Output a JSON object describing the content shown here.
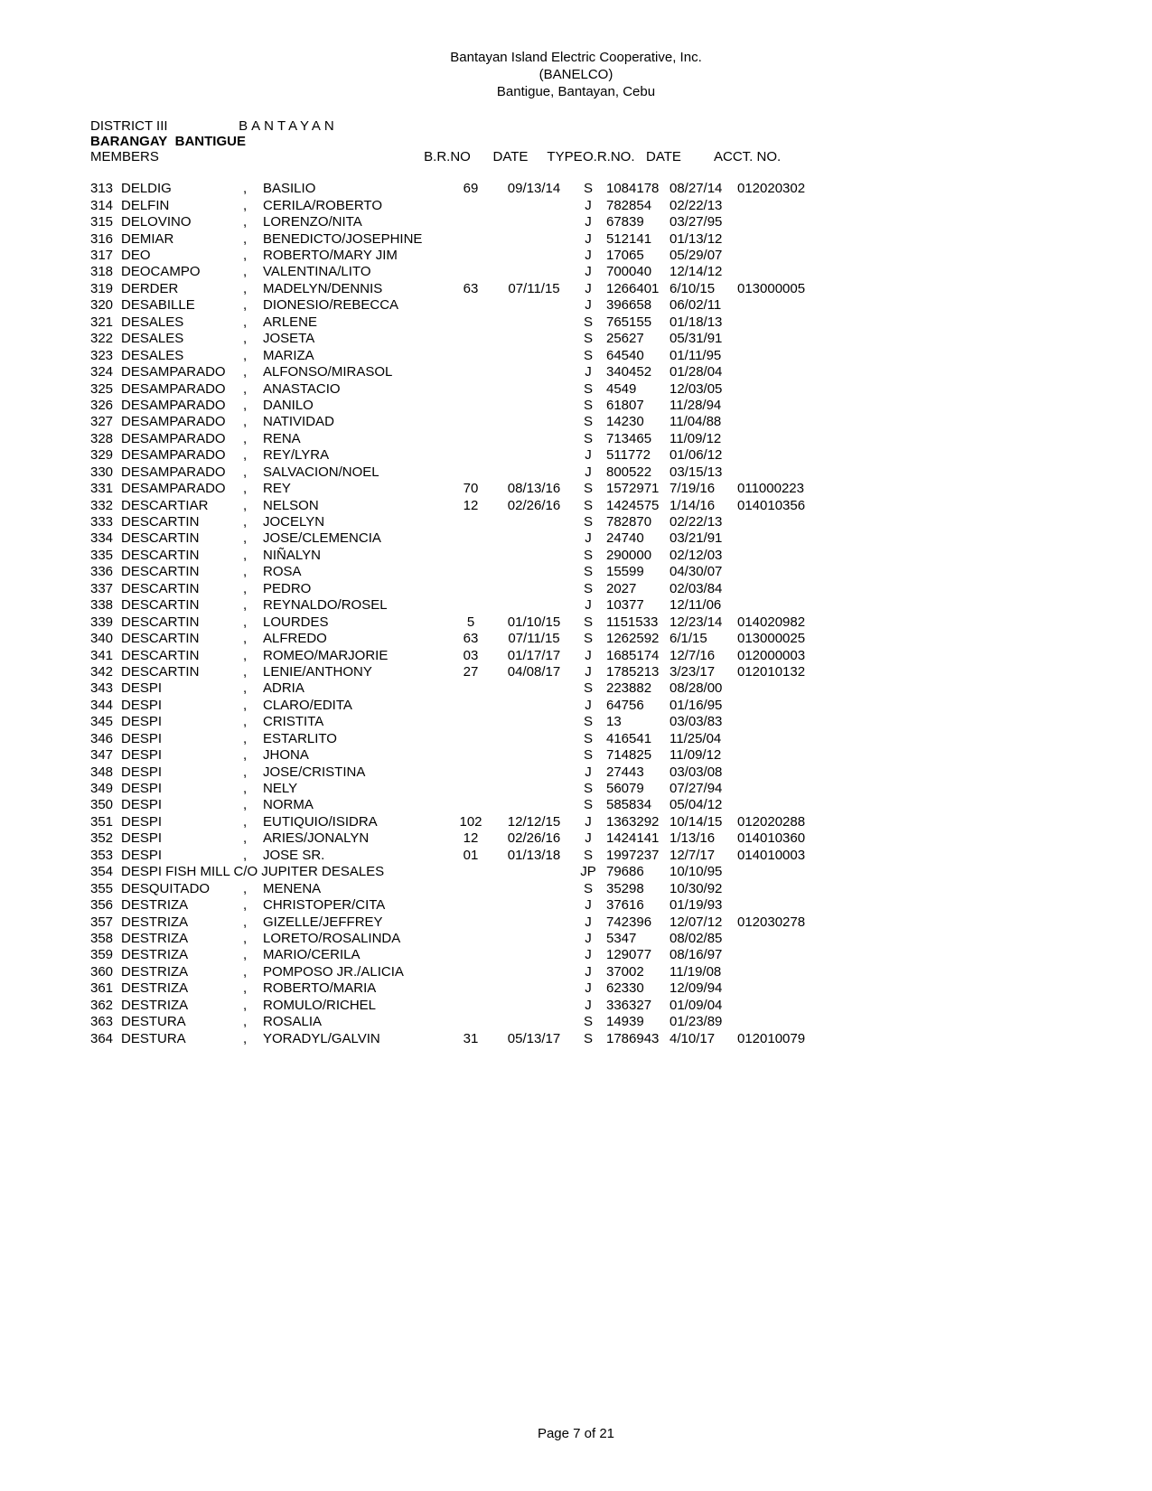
{
  "header": {
    "org": "Bantayan Island Electric Cooperative, Inc.",
    "abbr": "(BANELCO)",
    "addr": "Bantigue, Bantayan, Cebu"
  },
  "meta": {
    "district_label": "DISTRICT III",
    "district_name": "BANTAYAN",
    "barangay_label": "BARANGAY",
    "barangay_name": "BANTIGUE",
    "members_label": "MEMBERS"
  },
  "columns": {
    "brno": "B.R.NO",
    "date": "DATE",
    "type": "TYPE",
    "orno": "O.R.NO.",
    "odate": "DATE",
    "acct": "ACCT. NO."
  },
  "rows": [
    {
      "n": "313",
      "last": "DELDIG",
      "first": "BASILIO",
      "brno": "69",
      "bdate": "09/13/14",
      "type": "S",
      "orno": "1084178",
      "odate": "08/27/14",
      "acct": "012020302"
    },
    {
      "n": "314",
      "last": "DELFIN",
      "first": "CERILA/ROBERTO",
      "brno": "",
      "bdate": "",
      "type": "J",
      "orno": "782854",
      "odate": "02/22/13",
      "acct": ""
    },
    {
      "n": "315",
      "last": "DELOVINO",
      "first": "LORENZO/NITA",
      "brno": "",
      "bdate": "",
      "type": "J",
      "orno": "67839",
      "odate": "03/27/95",
      "acct": ""
    },
    {
      "n": "316",
      "last": "DEMIAR",
      "first": "BENEDICTO/JOSEPHINE",
      "brno": "",
      "bdate": "",
      "type": "J",
      "orno": "512141",
      "odate": "01/13/12",
      "acct": ""
    },
    {
      "n": "317",
      "last": "DEO",
      "first": "ROBERTO/MARY JIM",
      "brno": "",
      "bdate": "",
      "type": "J",
      "orno": "17065",
      "odate": "05/29/07",
      "acct": ""
    },
    {
      "n": "318",
      "last": "DEOCAMPO",
      "first": "VALENTINA/LITO",
      "brno": "",
      "bdate": "",
      "type": "J",
      "orno": "700040",
      "odate": "12/14/12",
      "acct": ""
    },
    {
      "n": "319",
      "last": "DERDER",
      "first": "MADELYN/DENNIS",
      "brno": "63",
      "bdate": "07/11/15",
      "type": "J",
      "orno": "1266401",
      "odate": "6/10/15",
      "acct": "013000005"
    },
    {
      "n": "320",
      "last": "DESABILLE",
      "first": "DIONESIO/REBECCA",
      "brno": "",
      "bdate": "",
      "type": "J",
      "orno": "396658",
      "odate": "06/02/11",
      "acct": ""
    },
    {
      "n": "321",
      "last": "DESALES",
      "first": "ARLENE",
      "brno": "",
      "bdate": "",
      "type": "S",
      "orno": "765155",
      "odate": "01/18/13",
      "acct": ""
    },
    {
      "n": "322",
      "last": "DESALES",
      "first": "JOSETA",
      "brno": "",
      "bdate": "",
      "type": "S",
      "orno": "25627",
      "odate": "05/31/91",
      "acct": ""
    },
    {
      "n": "323",
      "last": "DESALES",
      "first": "MARIZA",
      "brno": "",
      "bdate": "",
      "type": "S",
      "orno": "64540",
      "odate": "01/11/95",
      "acct": ""
    },
    {
      "n": "324",
      "last": "DESAMPARADO",
      "first": "ALFONSO/MIRASOL",
      "brno": "",
      "bdate": "",
      "type": "J",
      "orno": "340452",
      "odate": "01/28/04",
      "acct": ""
    },
    {
      "n": "325",
      "last": "DESAMPARADO",
      "first": "ANASTACIO",
      "brno": "",
      "bdate": "",
      "type": "S",
      "orno": "4549",
      "odate": "12/03/05",
      "acct": ""
    },
    {
      "n": "326",
      "last": "DESAMPARADO",
      "first": "DANILO",
      "brno": "",
      "bdate": "",
      "type": "S",
      "orno": "61807",
      "odate": "11/28/94",
      "acct": ""
    },
    {
      "n": "327",
      "last": "DESAMPARADO",
      "first": "NATIVIDAD",
      "brno": "",
      "bdate": "",
      "type": "S",
      "orno": "14230",
      "odate": "11/04/88",
      "acct": ""
    },
    {
      "n": "328",
      "last": "DESAMPARADO",
      "first": "RENA",
      "brno": "",
      "bdate": "",
      "type": "S",
      "orno": "713465",
      "odate": "11/09/12",
      "acct": ""
    },
    {
      "n": "329",
      "last": "DESAMPARADO",
      "first": "REY/LYRA",
      "brno": "",
      "bdate": "",
      "type": "J",
      "orno": "511772",
      "odate": "01/06/12",
      "acct": ""
    },
    {
      "n": "330",
      "last": "DESAMPARADO",
      "first": "SALVACION/NOEL",
      "brno": "",
      "bdate": "",
      "type": "J",
      "orno": "800522",
      "odate": "03/15/13",
      "acct": ""
    },
    {
      "n": "331",
      "last": "DESAMPARADO",
      "first": "REY",
      "brno": "70",
      "bdate": "08/13/16",
      "type": "S",
      "orno": "1572971",
      "odate": "7/19/16",
      "acct": "011000223"
    },
    {
      "n": "332",
      "last": "DESCARTIAR",
      "first": "NELSON",
      "brno": "12",
      "bdate": "02/26/16",
      "type": "S",
      "orno": "1424575",
      "odate": "1/14/16",
      "acct": "014010356"
    },
    {
      "n": "333",
      "last": "DESCARTIN",
      "first": "JOCELYN",
      "brno": "",
      "bdate": "",
      "type": "S",
      "orno": "782870",
      "odate": "02/22/13",
      "acct": ""
    },
    {
      "n": "334",
      "last": "DESCARTIN",
      "first": "JOSE/CLEMENCIA",
      "brno": "",
      "bdate": "",
      "type": "J",
      "orno": "24740",
      "odate": "03/21/91",
      "acct": ""
    },
    {
      "n": "335",
      "last": "DESCARTIN",
      "first": "NIÑALYN",
      "brno": "",
      "bdate": "",
      "type": "S",
      "orno": "290000",
      "odate": "02/12/03",
      "acct": ""
    },
    {
      "n": "336",
      "last": "DESCARTIN",
      "first": "ROSA",
      "brno": "",
      "bdate": "",
      "type": "S",
      "orno": "15599",
      "odate": "04/30/07",
      "acct": ""
    },
    {
      "n": "337",
      "last": "DESCARTIN",
      "first": "PEDRO",
      "brno": "",
      "bdate": "",
      "type": "S",
      "orno": "2027",
      "odate": "02/03/84",
      "acct": ""
    },
    {
      "n": "338",
      "last": "DESCARTIN",
      "first": "REYNALDO/ROSEL",
      "brno": "",
      "bdate": "",
      "type": "J",
      "orno": "10377",
      "odate": "12/11/06",
      "acct": ""
    },
    {
      "n": "339",
      "last": "DESCARTIN",
      "first": "LOURDES",
      "brno": "5",
      "bdate": "01/10/15",
      "type": "S",
      "orno": "1151533",
      "odate": "12/23/14",
      "acct": "014020982"
    },
    {
      "n": "340",
      "last": "DESCARTIN",
      "first": "ALFREDO",
      "brno": "63",
      "bdate": "07/11/15",
      "type": "S",
      "orno": "1262592",
      "odate": "6/1/15",
      "acct": "013000025"
    },
    {
      "n": "341",
      "last": "DESCARTIN",
      "first": "ROMEO/MARJORIE",
      "brno": "03",
      "bdate": "01/17/17",
      "type": "J",
      "orno": "1685174",
      "odate": "12/7/16",
      "acct": "012000003"
    },
    {
      "n": "342",
      "last": "DESCARTIN",
      "first": "LENIE/ANTHONY",
      "brno": "27",
      "bdate": "04/08/17",
      "type": "J",
      "orno": "1785213",
      "odate": "3/23/17",
      "acct": "012010132"
    },
    {
      "n": "343",
      "last": "DESPI",
      "first": "ADRIA",
      "brno": "",
      "bdate": "",
      "type": "S",
      "orno": "223882",
      "odate": "08/28/00",
      "acct": ""
    },
    {
      "n": "344",
      "last": "DESPI",
      "first": "CLARO/EDITA",
      "brno": "",
      "bdate": "",
      "type": "J",
      "orno": "64756",
      "odate": "01/16/95",
      "acct": ""
    },
    {
      "n": "345",
      "last": "DESPI",
      "first": "CRISTITA",
      "brno": "",
      "bdate": "",
      "type": "S",
      "orno": "13",
      "odate": "03/03/83",
      "acct": ""
    },
    {
      "n": "346",
      "last": "DESPI",
      "first": "ESTARLITO",
      "brno": "",
      "bdate": "",
      "type": "S",
      "orno": "416541",
      "odate": "11/25/04",
      "acct": ""
    },
    {
      "n": "347",
      "last": "DESPI",
      "first": "JHONA",
      "brno": "",
      "bdate": "",
      "type": "S",
      "orno": "714825",
      "odate": "11/09/12",
      "acct": ""
    },
    {
      "n": "348",
      "last": "DESPI",
      "first": "JOSE/CRISTINA",
      "brno": "",
      "bdate": "",
      "type": "J",
      "orno": "27443",
      "odate": "03/03/08",
      "acct": ""
    },
    {
      "n": "349",
      "last": "DESPI",
      "first": "NELY",
      "brno": "",
      "bdate": "",
      "type": "S",
      "orno": "56079",
      "odate": "07/27/94",
      "acct": ""
    },
    {
      "n": "350",
      "last": "DESPI",
      "first": "NORMA",
      "brno": "",
      "bdate": "",
      "type": "S",
      "orno": "585834",
      "odate": "05/04/12",
      "acct": ""
    },
    {
      "n": "351",
      "last": "DESPI",
      "first": "EUTIQUIO/ISIDRA",
      "brno": "102",
      "bdate": "12/12/15",
      "type": "J",
      "orno": "1363292",
      "odate": "10/14/15",
      "acct": "012020288"
    },
    {
      "n": "352",
      "last": "DESPI",
      "first": "ARIES/JONALYN",
      "brno": "12",
      "bdate": "02/26/16",
      "type": "J",
      "orno": "1424141",
      "odate": "1/13/16",
      "acct": "014010360"
    },
    {
      "n": "353",
      "last": "DESPI",
      "first": "JOSE SR.",
      "brno": "01",
      "bdate": "01/13/18",
      "type": "S",
      "orno": "1997237",
      "odate": "12/7/17",
      "acct": "014010003"
    },
    {
      "n": "354",
      "full": "DESPI FISH MILL C/O JUPITER DESALES",
      "brno": "",
      "bdate": "",
      "type": "JP",
      "orno": "79686",
      "odate": "10/10/95",
      "acct": ""
    },
    {
      "n": "355",
      "last": "DESQUITADO",
      "first": "MENENA",
      "brno": "",
      "bdate": "",
      "type": "S",
      "orno": "35298",
      "odate": "10/30/92",
      "acct": ""
    },
    {
      "n": "356",
      "last": "DESTRIZA",
      "first": "CHRISTOPER/CITA",
      "brno": "",
      "bdate": "",
      "type": "J",
      "orno": "37616",
      "odate": "01/19/93",
      "acct": ""
    },
    {
      "n": "357",
      "last": "DESTRIZA",
      "first": "GIZELLE/JEFFREY",
      "brno": "",
      "bdate": "",
      "type": "J",
      "orno": "742396",
      "odate": "12/07/12",
      "acct": "012030278"
    },
    {
      "n": "358",
      "last": "DESTRIZA",
      "first": "LORETO/ROSALINDA",
      "brno": "",
      "bdate": "",
      "type": "J",
      "orno": "5347",
      "odate": "08/02/85",
      "acct": ""
    },
    {
      "n": "359",
      "last": "DESTRIZA",
      "first": "MARIO/CERILA",
      "brno": "",
      "bdate": "",
      "type": "J",
      "orno": "129077",
      "odate": "08/16/97",
      "acct": ""
    },
    {
      "n": "360",
      "last": "DESTRIZA",
      "first": "POMPOSO JR./ALICIA",
      "brno": "",
      "bdate": "",
      "type": "J",
      "orno": "37002",
      "odate": "11/19/08",
      "acct": ""
    },
    {
      "n": "361",
      "last": "DESTRIZA",
      "first": "ROBERTO/MARIA",
      "brno": "",
      "bdate": "",
      "type": "J",
      "orno": "62330",
      "odate": "12/09/94",
      "acct": ""
    },
    {
      "n": "362",
      "last": "DESTRIZA",
      "first": "ROMULO/RICHEL",
      "brno": "",
      "bdate": "",
      "type": "J",
      "orno": "336327",
      "odate": "01/09/04",
      "acct": ""
    },
    {
      "n": "363",
      "last": "DESTURA",
      "first": "ROSALIA",
      "brno": "",
      "bdate": "",
      "type": "S",
      "orno": "14939",
      "odate": "01/23/89",
      "acct": ""
    },
    {
      "n": "364",
      "last": "DESTURA",
      "first": "YORADYL/GALVIN",
      "brno": "31",
      "bdate": "05/13/17",
      "type": "S",
      "orno": "1786943",
      "odate": "4/10/17",
      "acct": "012010079"
    }
  ],
  "footer": "Page 7 of 21"
}
